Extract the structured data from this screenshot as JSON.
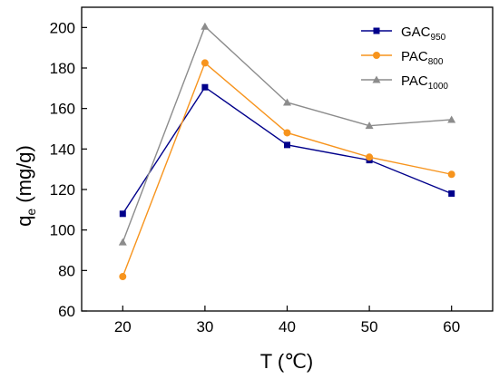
{
  "chart_data": {
    "type": "line",
    "x": [
      20,
      30,
      40,
      50,
      60
    ],
    "xlim": [
      15,
      65
    ],
    "ylim": [
      60,
      210
    ],
    "xticks": [
      20,
      30,
      40,
      50,
      60
    ],
    "yticks": [
      60,
      80,
      100,
      120,
      140,
      160,
      180,
      200
    ],
    "xlabel": "T (℃)",
    "ylabel_main": "q",
    "ylabel_sub": "e",
    "ylabel_unit": " (mg/g)",
    "legend_position": "top-right",
    "grid": false,
    "series": [
      {
        "name_main": "GAC",
        "name_sub": "950",
        "color": "#00008B",
        "marker": "square",
        "values": [
          108,
          170.5,
          142,
          134.5,
          118
        ]
      },
      {
        "name_main": "PAC",
        "name_sub": "800",
        "color": "#F7941D",
        "marker": "circle",
        "values": [
          77,
          182.5,
          148,
          136,
          127.5
        ]
      },
      {
        "name_main": "PAC",
        "name_sub": "1000",
        "color": "#8C8C8C",
        "marker": "triangle",
        "values": [
          94,
          200.5,
          163,
          151.5,
          154.5
        ]
      }
    ]
  }
}
